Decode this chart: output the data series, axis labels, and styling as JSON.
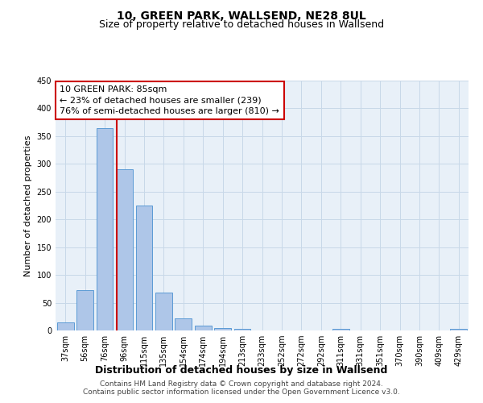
{
  "title": "10, GREEN PARK, WALLSEND, NE28 8UL",
  "subtitle": "Size of property relative to detached houses in Wallsend",
  "xlabel": "Distribution of detached houses by size in Wallsend",
  "ylabel": "Number of detached properties",
  "bar_labels": [
    "37sqm",
    "56sqm",
    "76sqm",
    "96sqm",
    "115sqm",
    "135sqm",
    "154sqm",
    "174sqm",
    "194sqm",
    "213sqm",
    "233sqm",
    "252sqm",
    "272sqm",
    "292sqm",
    "311sqm",
    "331sqm",
    "351sqm",
    "370sqm",
    "390sqm",
    "409sqm",
    "429sqm"
  ],
  "bar_values": [
    15,
    73,
    365,
    290,
    225,
    68,
    22,
    8,
    5,
    3,
    0,
    0,
    0,
    0,
    3,
    0,
    0,
    0,
    0,
    0,
    3
  ],
  "bar_color": "#aec6e8",
  "bar_edge_color": "#5b9bd5",
  "vline_color": "#cc0000",
  "annotation_box_text": "10 GREEN PARK: 85sqm\n← 23% of detached houses are smaller (239)\n76% of semi-detached houses are larger (810) →",
  "annotation_box_edgecolor": "#cc0000",
  "annotation_box_facecolor": "#ffffff",
  "ylim": [
    0,
    450
  ],
  "yticks": [
    0,
    50,
    100,
    150,
    200,
    250,
    300,
    350,
    400,
    450
  ],
  "grid_color": "#c8d8e8",
  "background_color": "#e8f0f8",
  "footer_line1": "Contains HM Land Registry data © Crown copyright and database right 2024.",
  "footer_line2": "Contains public sector information licensed under the Open Government Licence v3.0.",
  "title_fontsize": 10,
  "subtitle_fontsize": 9,
  "xlabel_fontsize": 9,
  "ylabel_fontsize": 8,
  "tick_fontsize": 7,
  "annotation_fontsize": 8,
  "footer_fontsize": 6.5
}
